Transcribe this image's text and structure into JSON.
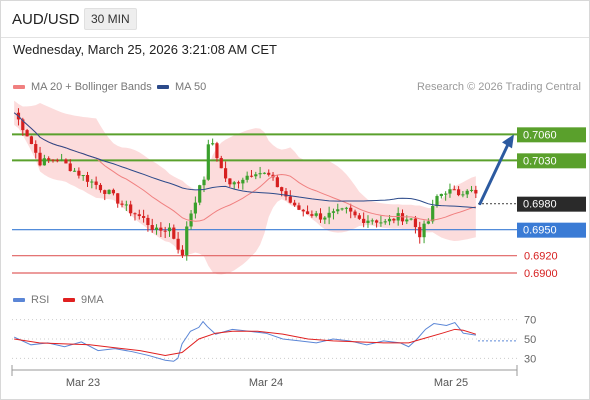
{
  "header": {
    "symbol": "AUD/USD",
    "timeframe": "30 MIN",
    "timestamp": "Wednesday, March 25, 2026 3:21:08 AM CET"
  },
  "legend": {
    "ma20_label": "MA 20 + Bollinger Bands",
    "ma20_color": "#f08080",
    "ma50_label": "MA 50",
    "ma50_color": "#2c4a8a",
    "copyright": "Research © 2026 Trading Central"
  },
  "chart_data": [
    {
      "type": "candlestick",
      "y_range": [
        0.6885,
        0.7095
      ],
      "x_labels": [
        "Mar 23",
        "Mar 24",
        "Mar 25"
      ],
      "current_price": 0.698,
      "levels": [
        {
          "value": 0.706,
          "label": "0.7060",
          "color": "#5aa02c",
          "kind": "resistance"
        },
        {
          "value": 0.703,
          "label": "0.7030",
          "color": "#5aa02c",
          "kind": "resistance"
        },
        {
          "value": 0.695,
          "label": "0.6950",
          "color": "#3a7bd5",
          "kind": "pivot"
        },
        {
          "value": 0.692,
          "label": "0.6920",
          "color": "#e06060",
          "kind": "support"
        },
        {
          "value": 0.69,
          "label": "0.6900",
          "color": "#e06060",
          "kind": "support"
        }
      ],
      "current_label": "0.6980",
      "arrow_color": "#2c5aa0",
      "anchors": [
        [
          0,
          0.7085
        ],
        [
          3,
          0.706
        ],
        [
          6,
          0.7028
        ],
        [
          10,
          0.7032
        ],
        [
          14,
          0.7018
        ],
        [
          18,
          0.7005
        ],
        [
          22,
          0.6992
        ],
        [
          26,
          0.6975
        ],
        [
          30,
          0.6962
        ],
        [
          33,
          0.6948
        ],
        [
          36,
          0.6952
        ],
        [
          38,
          0.693
        ],
        [
          39,
          0.6918
        ],
        [
          40,
          0.6955
        ],
        [
          42,
          0.6985
        ],
        [
          44,
          0.701
        ],
        [
          45,
          0.7045
        ],
        [
          46,
          0.705
        ],
        [
          48,
          0.702
        ],
        [
          50,
          0.7
        ],
        [
          53,
          0.701
        ],
        [
          56,
          0.7018
        ],
        [
          59,
          0.7012
        ],
        [
          62,
          0.6995
        ],
        [
          65,
          0.6975
        ],
        [
          68,
          0.697
        ],
        [
          71,
          0.6965
        ],
        [
          74,
          0.6968
        ],
        [
          77,
          0.6972
        ],
        [
          80,
          0.6962
        ],
        [
          83,
          0.6962
        ],
        [
          86,
          0.6958
        ],
        [
          89,
          0.6965
        ],
        [
          92,
          0.6962
        ],
        [
          94,
          0.6945
        ],
        [
          96,
          0.696
        ],
        [
          98,
          0.6988
        ],
        [
          100,
          0.6995
        ],
        [
          103,
          0.6992
        ],
        [
          105,
          0.6998
        ],
        [
          107,
          0.699
        ]
      ]
    },
    {
      "type": "line",
      "series": [
        {
          "name": "RSI",
          "color": "#5b86d6"
        },
        {
          "name": "9MA",
          "color": "#e02020"
        }
      ],
      "y_ticks": [
        70,
        50,
        30
      ],
      "rsi": [
        [
          0,
          52
        ],
        [
          4,
          44
        ],
        [
          8,
          46
        ],
        [
          12,
          42
        ],
        [
          16,
          47
        ],
        [
          20,
          38
        ],
        [
          24,
          40
        ],
        [
          28,
          37
        ],
        [
          32,
          33
        ],
        [
          36,
          28
        ],
        [
          38,
          27
        ],
        [
          39,
          30
        ],
        [
          40,
          45
        ],
        [
          42,
          58
        ],
        [
          44,
          62
        ],
        [
          45,
          68
        ],
        [
          46,
          63
        ],
        [
          48,
          55
        ],
        [
          52,
          60
        ],
        [
          56,
          58
        ],
        [
          60,
          56
        ],
        [
          64,
          50
        ],
        [
          68,
          48
        ],
        [
          72,
          46
        ],
        [
          76,
          50
        ],
        [
          80,
          48
        ],
        [
          84,
          44
        ],
        [
          88,
          48
        ],
        [
          92,
          46
        ],
        [
          94,
          42
        ],
        [
          96,
          50
        ],
        [
          98,
          60
        ],
        [
          100,
          66
        ],
        [
          103,
          64
        ],
        [
          105,
          67
        ],
        [
          107,
          56
        ],
        [
          110,
          54
        ]
      ],
      "ma9": [
        [
          0,
          50
        ],
        [
          6,
          46
        ],
        [
          12,
          45
        ],
        [
          18,
          44
        ],
        [
          24,
          41
        ],
        [
          30,
          38
        ],
        [
          36,
          33
        ],
        [
          40,
          36
        ],
        [
          44,
          50
        ],
        [
          48,
          56
        ],
        [
          52,
          58
        ],
        [
          58,
          58
        ],
        [
          64,
          55
        ],
        [
          70,
          50
        ],
        [
          76,
          48
        ],
        [
          82,
          47
        ],
        [
          88,
          46
        ],
        [
          94,
          46
        ],
        [
          98,
          51
        ],
        [
          102,
          56
        ],
        [
          105,
          60
        ],
        [
          107,
          59
        ],
        [
          110,
          55
        ]
      ]
    }
  ],
  "rsi_legend": {
    "rsi_label": "RSI",
    "rsi_color": "#5b86d6",
    "ma9_label": "9MA",
    "ma9_color": "#e02020"
  }
}
